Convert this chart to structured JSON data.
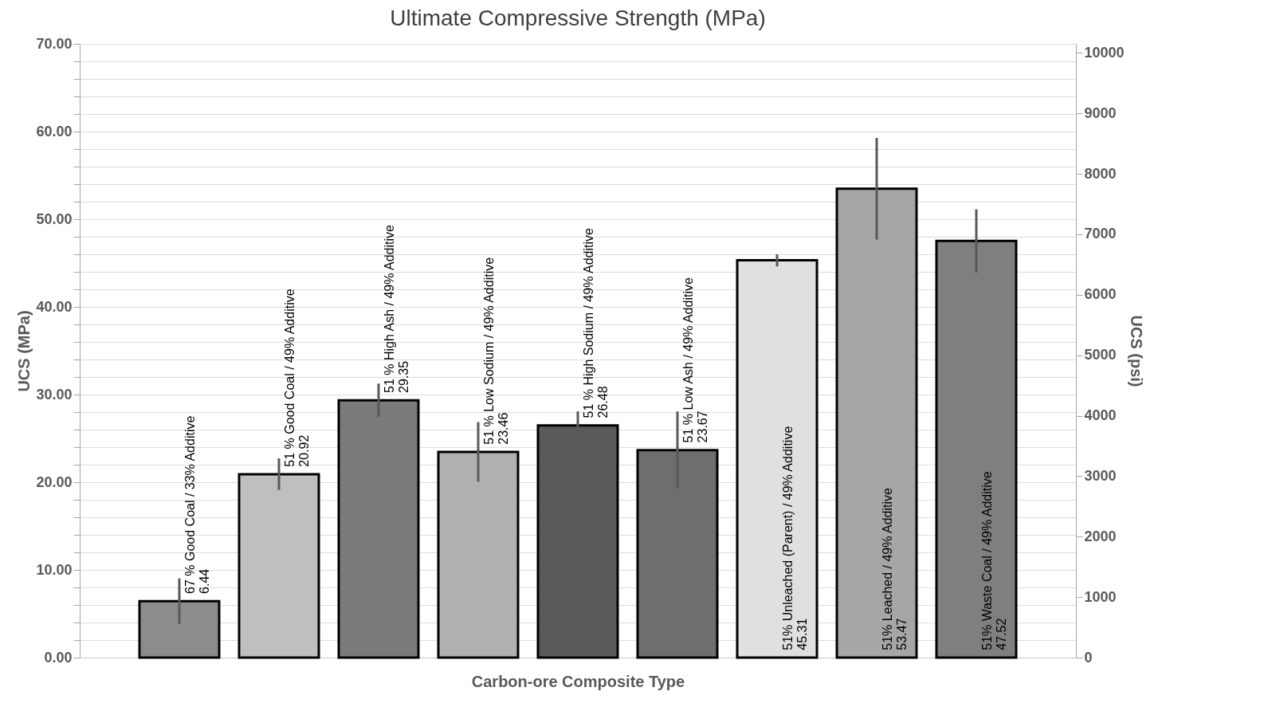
{
  "chart_data": {
    "type": "bar",
    "title": "Ultimate Compressive Strength (MPa)",
    "xlabel": "Carbon-ore Composite Type",
    "ylabel": "UCS (MPa)",
    "y2label": "UCS (psi)",
    "categories": [
      "67 % Good Coal / 33% Additive",
      "51 % Good Coal / 49% Additive",
      "51 % High Ash / 49% Additive",
      "51 % Low Sodium / 49% Additive",
      "51 % High Sodium / 49% Additive",
      "51 % Low Ash / 49% Additive",
      "51% Unleached (Parent) / 49% Additive",
      "51% Leached / 49% Additive",
      "51% Waste Coal / 49% Additive"
    ],
    "values": [
      6.44,
      20.92,
      29.35,
      23.46,
      26.48,
      23.67,
      45.31,
      53.47,
      47.52
    ],
    "errors": [
      2.6,
      1.8,
      1.9,
      3.4,
      1.6,
      4.4,
      0.7,
      5.8,
      3.6
    ],
    "colors": [
      "#8c8c8c",
      "#bfbfbf",
      "#7a7a7a",
      "#b0b0b0",
      "#5a5a5a",
      "#6e6e6e",
      "#e0e0e0",
      "#a6a6a6",
      "#7f7f7f"
    ],
    "data_labels": true,
    "ylim": [
      0,
      70
    ],
    "yticks": [
      {
        "value": 0,
        "label": "0.00"
      },
      {
        "value": 2,
        "label": null
      },
      {
        "value": 4,
        "label": null
      },
      {
        "value": 6,
        "label": null
      },
      {
        "value": 8,
        "label": null
      },
      {
        "value": 10,
        "label": "10.00"
      },
      {
        "value": 12,
        "label": null
      },
      {
        "value": 14,
        "label": null
      },
      {
        "value": 16,
        "label": null
      },
      {
        "value": 18,
        "label": null
      },
      {
        "value": 20,
        "label": "20.00"
      },
      {
        "value": 22,
        "label": null
      },
      {
        "value": 24,
        "label": null
      },
      {
        "value": 26,
        "label": null
      },
      {
        "value": 28,
        "label": null
      },
      {
        "value": 30,
        "label": "30.00"
      },
      {
        "value": 32,
        "label": null
      },
      {
        "value": 34,
        "label": null
      },
      {
        "value": 36,
        "label": null
      },
      {
        "value": 38,
        "label": null
      },
      {
        "value": 40,
        "label": "40.00"
      },
      {
        "value": 42,
        "label": null
      },
      {
        "value": 44,
        "label": null
      },
      {
        "value": 46,
        "label": null
      },
      {
        "value": 48,
        "label": null
      },
      {
        "value": 50,
        "label": "50.00"
      },
      {
        "value": 52,
        "label": null
      },
      {
        "value": 54,
        "label": null
      },
      {
        "value": 56,
        "label": null
      },
      {
        "value": 58,
        "label": null
      },
      {
        "value": 60,
        "label": "60.00"
      },
      {
        "value": 62,
        "label": null
      },
      {
        "value": 64,
        "label": null
      },
      {
        "value": 66,
        "label": null
      },
      {
        "value": 68,
        "label": null
      },
      {
        "value": 70,
        "label": "70.00"
      }
    ],
    "y2lim": [
      0,
      10150
    ],
    "y2ticks": [
      0,
      1000,
      2000,
      3000,
      4000,
      5000,
      6000,
      7000,
      8000,
      9000,
      10000
    ],
    "tick_labels": "y",
    "grid": "y"
  }
}
